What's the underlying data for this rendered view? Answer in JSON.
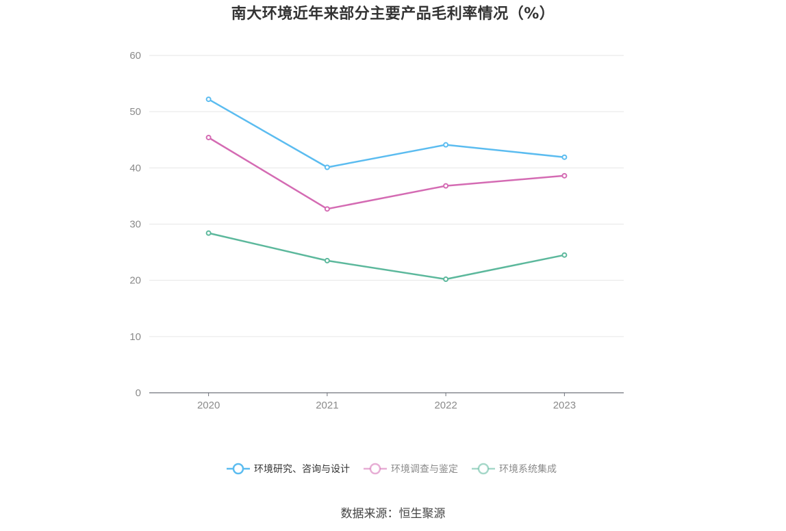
{
  "title": "南大环境近年来部分主要产品毛利率情况（%）",
  "source": "数据来源：恒生聚源",
  "chart_data": {
    "type": "line",
    "title": "南大环境近年来部分主要产品毛利率情况（%）",
    "categories": [
      "2020",
      "2021",
      "2022",
      "2023"
    ],
    "ylim": [
      0,
      60
    ],
    "yticks": [
      "0",
      "10",
      "20",
      "30",
      "40",
      "50",
      "60"
    ],
    "grid": true,
    "legend_position": "bottom",
    "series": [
      {
        "name": "环境研究、咨询与设计",
        "color": "#5bbcf0",
        "values": [
          52.2,
          40.1,
          44.1,
          41.9
        ],
        "active": true
      },
      {
        "name": "环境调查与鉴定",
        "color": "#d46bb3",
        "values": [
          45.4,
          32.7,
          36.8,
          38.6
        ],
        "active": false
      },
      {
        "name": "环境系统集成",
        "color": "#5cb89c",
        "values": [
          28.4,
          23.5,
          20.2,
          24.5
        ],
        "active": false
      }
    ]
  }
}
